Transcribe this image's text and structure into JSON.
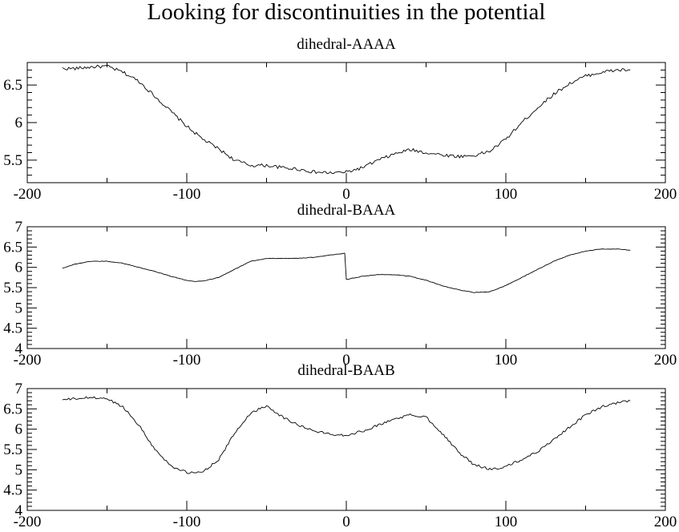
{
  "page": {
    "title": "Looking for discontinuities in the potential"
  },
  "chart_data": [
    {
      "type": "line",
      "title": "dihedral-AAAA",
      "xlabel": "",
      "ylabel": "",
      "xlim": [
        -200,
        200
      ],
      "ylim": [
        5.2,
        6.8
      ],
      "xticks": [
        -200,
        -100,
        0,
        100,
        200
      ],
      "yticks": [
        5.5,
        6,
        6.5
      ],
      "ytick_labels": [
        "5.5",
        "6",
        "6.5"
      ],
      "grid": false,
      "series": [
        {
          "x": [
            -178,
            -170,
            -160,
            -150,
            -140,
            -130,
            -120,
            -110,
            -100,
            -90,
            -80,
            -70,
            -60,
            -50,
            -40,
            -30,
            -20,
            -10,
            0,
            10,
            20,
            30,
            40,
            50,
            60,
            70,
            80,
            90,
            100,
            110,
            120,
            130,
            140,
            150,
            160,
            170,
            178
          ],
          "y": [
            6.72,
            6.72,
            6.74,
            6.75,
            6.67,
            6.55,
            6.35,
            6.15,
            5.95,
            5.78,
            5.65,
            5.5,
            5.43,
            5.43,
            5.4,
            5.38,
            5.34,
            5.33,
            5.34,
            5.4,
            5.5,
            5.58,
            5.64,
            5.6,
            5.57,
            5.55,
            5.56,
            5.62,
            5.78,
            6.0,
            6.2,
            6.38,
            6.52,
            6.62,
            6.67,
            6.7,
            6.7
          ],
          "noise": 0.022
        }
      ]
    },
    {
      "type": "line",
      "title": "dihedral-BAAA",
      "xlabel": "",
      "ylabel": "",
      "xlim": [
        -200,
        200
      ],
      "ylim": [
        4,
        7
      ],
      "xticks": [
        -200,
        -100,
        0,
        100,
        200
      ],
      "yticks": [
        4,
        4.5,
        5,
        5.5,
        6,
        6.5,
        7
      ],
      "ytick_labels": [
        "4",
        "4.5",
        "5",
        "5.5",
        "6",
        "6.5",
        "7"
      ],
      "grid": false,
      "series": [
        {
          "x": [
            -178,
            -170,
            -160,
            -150,
            -140,
            -130,
            -120,
            -110,
            -100,
            -95,
            -90,
            -80,
            -70,
            -60,
            -50,
            -40,
            -30,
            -20,
            -10,
            -1,
            0,
            10,
            20,
            30,
            40,
            50,
            60,
            70,
            80,
            90,
            100,
            110,
            120,
            130,
            140,
            150,
            160,
            170,
            178
          ],
          "y": [
            5.98,
            6.08,
            6.15,
            6.15,
            6.1,
            6.0,
            5.9,
            5.78,
            5.68,
            5.65,
            5.66,
            5.75,
            5.95,
            6.15,
            6.22,
            6.22,
            6.22,
            6.25,
            6.3,
            6.35,
            5.7,
            5.78,
            5.82,
            5.82,
            5.78,
            5.68,
            5.55,
            5.45,
            5.38,
            5.4,
            5.55,
            5.75,
            5.95,
            6.15,
            6.3,
            6.4,
            6.45,
            6.45,
            6.42
          ],
          "noise": 0.006
        }
      ]
    },
    {
      "type": "line",
      "title": "dihedral-BAAB",
      "xlabel": "",
      "ylabel": "",
      "xlim": [
        -200,
        200
      ],
      "ylim": [
        4,
        7
      ],
      "xticks": [
        -200,
        -100,
        0,
        100,
        200
      ],
      "yticks": [
        4,
        4.5,
        5,
        5.5,
        6,
        6.5,
        7
      ],
      "ytick_labels": [
        "4",
        "4.5",
        "5",
        "5.5",
        "6",
        "6.5",
        "7"
      ],
      "grid": false,
      "series": [
        {
          "x": [
            -178,
            -170,
            -160,
            -150,
            -140,
            -130,
            -120,
            -110,
            -100,
            -95,
            -90,
            -80,
            -70,
            -60,
            -50,
            -40,
            -30,
            -20,
            -10,
            0,
            10,
            20,
            30,
            40,
            50,
            60,
            70,
            80,
            90,
            95,
            100,
            110,
            120,
            130,
            140,
            150,
            160,
            170,
            178
          ],
          "y": [
            6.72,
            6.75,
            6.78,
            6.75,
            6.55,
            6.1,
            5.5,
            5.1,
            4.93,
            4.92,
            4.95,
            5.25,
            5.9,
            6.4,
            6.58,
            6.3,
            6.1,
            5.95,
            5.88,
            5.85,
            5.95,
            6.1,
            6.25,
            6.35,
            6.3,
            5.9,
            5.45,
            5.12,
            5.02,
            5.03,
            5.08,
            5.25,
            5.45,
            5.75,
            6.05,
            6.35,
            6.55,
            6.65,
            6.7
          ],
          "noise": 0.03
        }
      ]
    }
  ]
}
